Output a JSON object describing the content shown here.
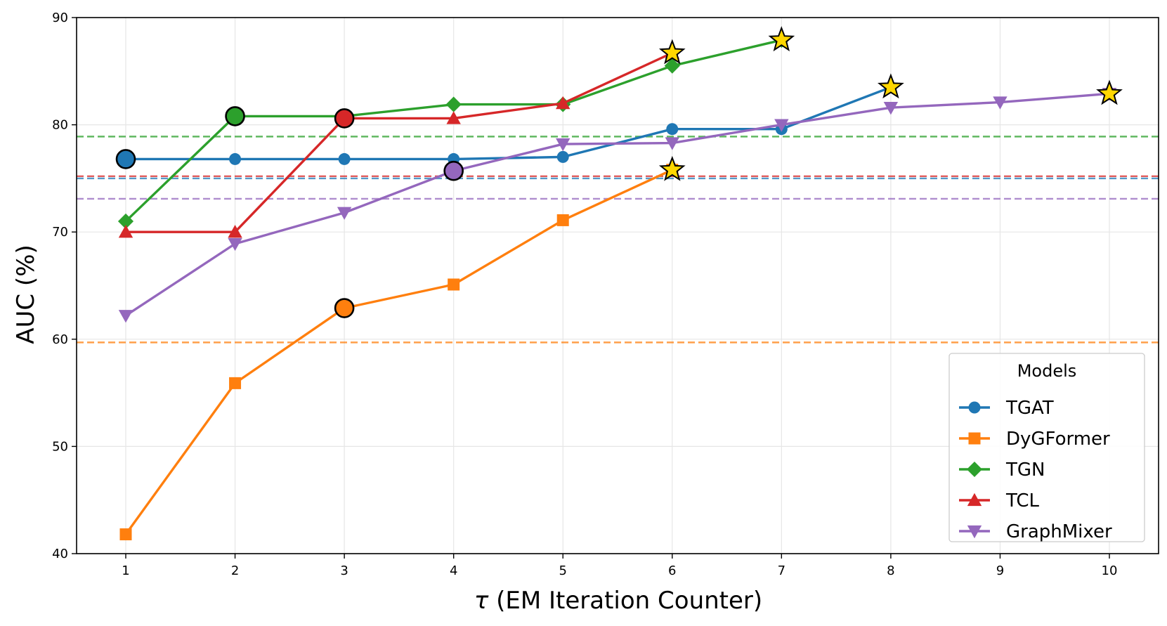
{
  "chart_data": {
    "type": "line",
    "xlabel_symbol": "τ",
    "xlabel": " (EM Iteration Counter)",
    "ylabel": "AUC (%)",
    "xlim": [
      0.55,
      10.45
    ],
    "ylim": [
      40,
      90
    ],
    "xticks": [
      1,
      2,
      3,
      4,
      5,
      6,
      7,
      8,
      9,
      10
    ],
    "yticks": [
      40,
      50,
      60,
      70,
      80,
      90
    ],
    "grid": true,
    "legend": {
      "title": "Models",
      "placement": "bottom-right"
    },
    "series": [
      {
        "name": "TGAT",
        "color": "#1f77b4",
        "marker": "circle",
        "x": [
          1,
          2,
          3,
          4,
          5,
          6,
          7,
          8
        ],
        "values": [
          76.8,
          76.8,
          76.8,
          76.8,
          77.0,
          79.6,
          79.6,
          83.5
        ],
        "baseline": 75.0,
        "best_x": 1,
        "best_value": 76.8,
        "final_x": 8,
        "final_value": 83.5
      },
      {
        "name": "DyGFormer",
        "color": "#ff7f0e",
        "marker": "square",
        "x": [
          1,
          2,
          3,
          4,
          5,
          6
        ],
        "values": [
          41.8,
          55.9,
          62.9,
          65.1,
          71.1,
          75.8
        ],
        "baseline": 59.7,
        "best_x": 3,
        "best_value": 62.9,
        "final_x": 6,
        "final_value": 75.8
      },
      {
        "name": "TGN",
        "color": "#2ca02c",
        "marker": "diamond",
        "x": [
          1,
          2,
          3,
          4,
          5,
          6,
          7
        ],
        "values": [
          71.0,
          80.8,
          80.8,
          81.9,
          81.9,
          85.5,
          87.9
        ],
        "baseline": 78.9,
        "best_x": 2,
        "best_value": 80.8,
        "final_x": 7,
        "final_value": 87.9
      },
      {
        "name": "TCL",
        "color": "#d62728",
        "marker": "triangle-up",
        "x": [
          1,
          2,
          3,
          4,
          5,
          6
        ],
        "values": [
          70.0,
          70.0,
          80.6,
          80.6,
          82.0,
          86.7
        ],
        "baseline": 75.2,
        "best_x": 3,
        "best_value": 80.6,
        "final_x": 6,
        "final_value": 86.7
      },
      {
        "name": "GraphMixer",
        "color": "#9467bd",
        "marker": "triangle-down",
        "x": [
          1,
          2,
          3,
          4,
          5,
          6,
          7,
          8,
          9,
          10
        ],
        "values": [
          62.2,
          68.9,
          71.8,
          75.7,
          78.2,
          78.3,
          80.0,
          81.6,
          82.1,
          82.9
        ],
        "baseline": 73.1,
        "best_x": 4,
        "best_value": 75.7,
        "final_x": 10,
        "final_value": 82.9
      }
    ]
  }
}
